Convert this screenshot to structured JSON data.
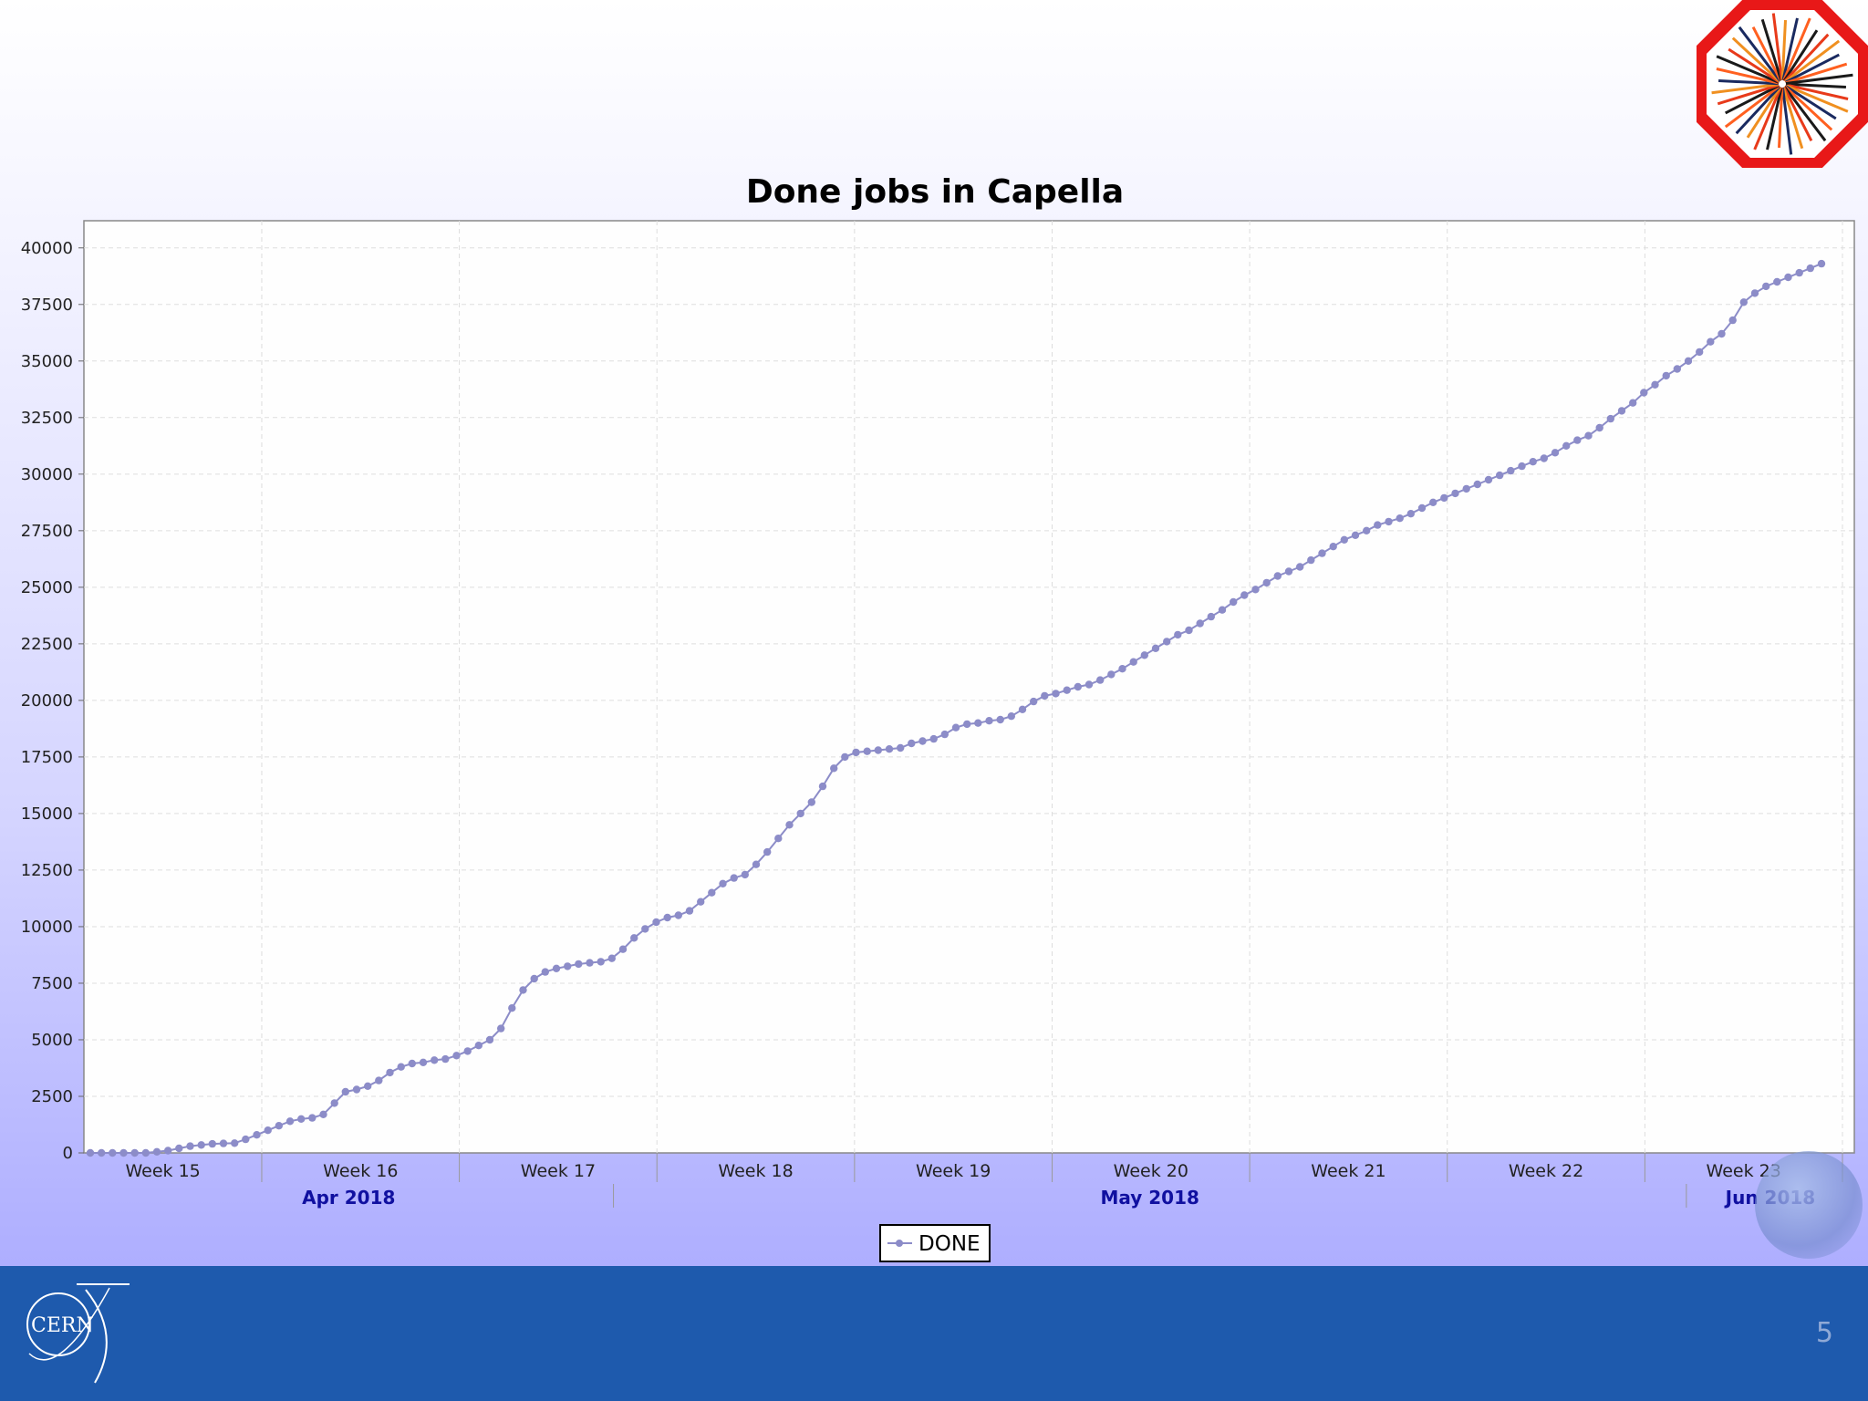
{
  "slide": {
    "number": "5"
  },
  "logos": {
    "top_right": "atlas-experiment-logo",
    "bottom_left": "CERN"
  },
  "chart_data": {
    "type": "line",
    "title": "Done jobs in Capella",
    "xlabel": "",
    "ylabel": "",
    "y_ticks": [
      "0",
      "2500",
      "5000",
      "7500",
      "10000",
      "12500",
      "15000",
      "17500",
      "20000",
      "22500",
      "25000",
      "27500",
      "30000",
      "32500",
      "35000",
      "37500",
      "40000"
    ],
    "ylim": [
      0,
      41200
    ],
    "x_range_weeks": [
      14.6,
      23.56
    ],
    "week_ticks": [
      {
        "label": "Week 15",
        "pos": 15
      },
      {
        "label": "Week 16",
        "pos": 16
      },
      {
        "label": "Week 17",
        "pos": 17
      },
      {
        "label": "Week 18",
        "pos": 18
      },
      {
        "label": "Week 19",
        "pos": 19
      },
      {
        "label": "Week 20",
        "pos": 20
      },
      {
        "label": "Week 21",
        "pos": 21
      },
      {
        "label": "Week 22",
        "pos": 22
      },
      {
        "label": "Week 23",
        "pos": 23
      }
    ],
    "months": [
      {
        "label": "Apr 2018",
        "start": 14.6,
        "end": 17.28
      },
      {
        "label": "May 2018",
        "start": 17.28,
        "end": 22.71
      },
      {
        "label": "Jun 2018",
        "start": 22.71,
        "end": 23.56
      }
    ],
    "grid": true,
    "legend_position": "bottom-center",
    "series": [
      {
        "name": "DONE",
        "color": "#8c8cc8",
        "values": [
          0,
          0,
          0,
          0,
          0,
          0,
          50,
          100,
          200,
          300,
          350,
          400,
          420,
          430,
          600,
          800,
          1000,
          1200,
          1400,
          1500,
          1550,
          1700,
          2200,
          2700,
          2800,
          2950,
          3200,
          3550,
          3800,
          3950,
          4000,
          4100,
          4150,
          4300,
          4500,
          4750,
          5000,
          5500,
          6400,
          7200,
          7700,
          8000,
          8150,
          8250,
          8350,
          8400,
          8450,
          8600,
          9000,
          9500,
          9900,
          10200,
          10400,
          10500,
          10700,
          11100,
          11500,
          11900,
          12150,
          12300,
          12750,
          13300,
          13900,
          14500,
          15000,
          15500,
          16200,
          17000,
          17500,
          17700,
          17750,
          17800,
          17850,
          17900,
          18100,
          18200,
          18300,
          18500,
          18800,
          18950,
          19000,
          19100,
          19150,
          19300,
          19600,
          19950,
          20200,
          20300,
          20450,
          20600,
          20700,
          20900,
          21150,
          21400,
          21700,
          22000,
          22300,
          22600,
          22900,
          23100,
          23400,
          23700,
          24000,
          24350,
          24650,
          24900,
          25200,
          25500,
          25700,
          25900,
          26200,
          26500,
          26800,
          27100,
          27300,
          27500,
          27750,
          27900,
          28050,
          28250,
          28500,
          28750,
          28950,
          29150,
          29350,
          29550,
          29750,
          29950,
          30150,
          30350,
          30550,
          30700,
          30950,
          31250,
          31500,
          31700,
          32050,
          32450,
          32800,
          33150,
          33600,
          33950,
          34350,
          34650,
          35000,
          35400,
          35850,
          36200,
          36800,
          37600,
          38000,
          38300,
          38500,
          38700,
          38900,
          39100,
          39300
        ]
      }
    ]
  }
}
